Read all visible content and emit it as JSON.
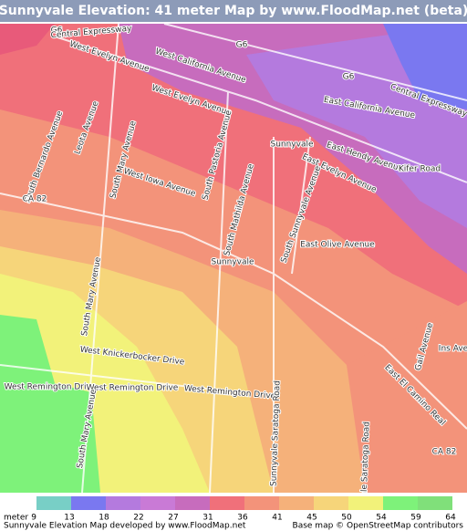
{
  "header": {
    "title": "Sunnyvale Elevation: 41 meter Map by www.FloodMap.net (beta)"
  },
  "map": {
    "labels": [
      "G6",
      "Central Expressway",
      "West Evelyn Avenue",
      "West California Avenue",
      "G6",
      "G6",
      "West Evelyn Avenue",
      "East California Avenue",
      "Central Expressway",
      "Sunnyvale",
      "East Hendy Avenue",
      "Kifer Road",
      "East Evelyn Avenue",
      "South Bernardo Avenue",
      "Leota Avenue",
      "South Mary Avenue",
      "South Pastoria Avenue",
      "West Iowa Avenue",
      "South Mathilda Avenue",
      "South Sunnyvale Avenue",
      "CA 82",
      "East Olive Avenue",
      "Sunnyvale",
      "South Mary Avenue",
      "West Knickerbocker Drive",
      "West Remington Drive",
      "West Remington Drive",
      "West Remington Drive",
      "Gail Avenue",
      "Ins Ave",
      "East El Camino Real",
      "Sunnyvale Saratoga Road",
      "South Mary Avenue",
      "CA 82",
      "Sunnyvale Saratoga Road"
    ]
  },
  "legend": {
    "unit": "meter",
    "values": [
      "9",
      "13",
      "18",
      "22",
      "27",
      "31",
      "36",
      "41",
      "45",
      "50",
      "54",
      "59",
      "64"
    ],
    "colors": [
      "#78cfc6",
      "#7a78f0",
      "#b47ade",
      "#c97ad6",
      "#c76cbd",
      "#f0707a",
      "#f3937a",
      "#f5b17a",
      "#f6d57a",
      "#f2f27a",
      "#7ef27a",
      "#80e07a"
    ]
  },
  "footer": {
    "left": "Sunnyvale Elevation Map developed by www.FloodMap.net",
    "right": "Base map © OpenStreetMap contributors"
  }
}
